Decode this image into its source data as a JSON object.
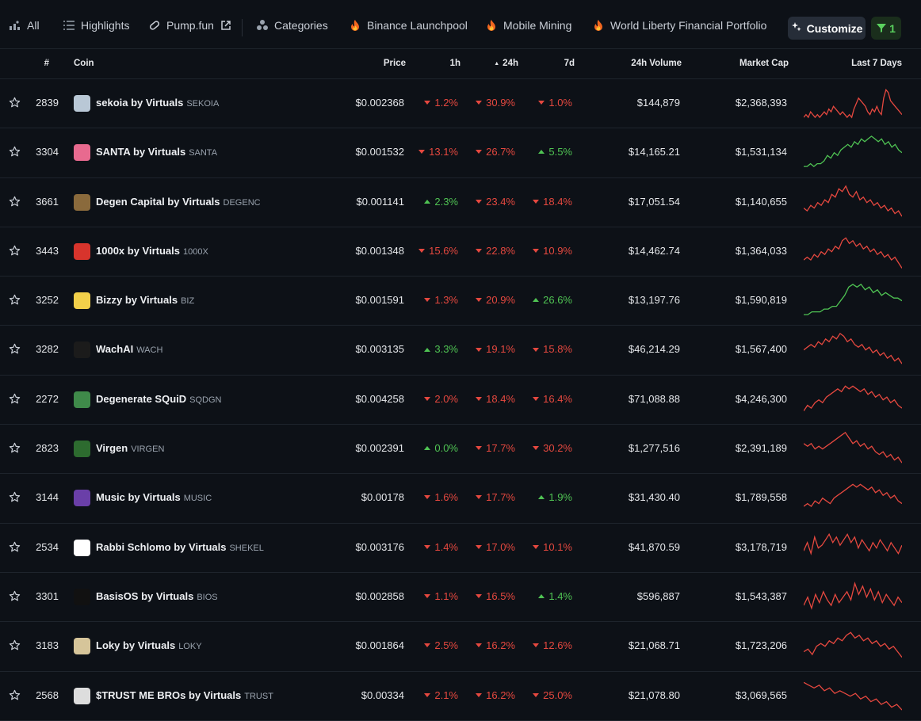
{
  "tabs": [
    {
      "label": "All",
      "icon": "chart-dots-icon"
    },
    {
      "label": "Highlights",
      "icon": "list-icon"
    },
    {
      "label": "Pump.fun",
      "icon": "pill-icon",
      "external": true
    },
    {
      "label": "Categories",
      "icon": "triangle-dots-icon"
    },
    {
      "label": "Binance Launchpool",
      "icon": "fire-icon"
    },
    {
      "label": "Mobile Mining",
      "icon": "fire-icon"
    },
    {
      "label": "World Liberty Financial Portfolio",
      "icon": "fire-icon"
    }
  ],
  "toolbar": {
    "customize_label": "Customize",
    "filter_count": "1"
  },
  "columns": {
    "rank": "#",
    "coin": "Coin",
    "price": "Price",
    "h1": "1h",
    "h24": "24h",
    "d7": "7d",
    "volume": "24h Volume",
    "market_cap": "Market Cap",
    "last7": "Last 7 Days"
  },
  "colors": {
    "up": "#4fc353",
    "down": "#e5483f",
    "background": "#0d1117"
  },
  "rows": [
    {
      "rank": "2839",
      "name": "sekoia by Virtuals",
      "symbol": "SEKOIA",
      "price": "$0.002368",
      "h1": "1.2%",
      "h1_dir": "down",
      "h24": "30.9%",
      "h24_dir": "down",
      "d7": "1.0%",
      "d7_dir": "down",
      "volume": "$144,879",
      "mcap": "$2,368,393",
      "trend": "down",
      "icon_color": "#b9c8d6"
    },
    {
      "rank": "3304",
      "name": "SANTA by Virtuals",
      "symbol": "SANTA",
      "price": "$0.001532",
      "h1": "13.1%",
      "h1_dir": "down",
      "h24": "26.7%",
      "h24_dir": "down",
      "d7": "5.5%",
      "d7_dir": "up",
      "volume": "$14,165.21",
      "mcap": "$1,531,134",
      "trend": "up",
      "icon_color": "#e86a8f"
    },
    {
      "rank": "3661",
      "name": "Degen Capital by Virtuals",
      "symbol": "DEGENC",
      "price": "$0.001141",
      "h1": "2.3%",
      "h1_dir": "up",
      "h24": "23.4%",
      "h24_dir": "down",
      "d7": "18.4%",
      "d7_dir": "down",
      "volume": "$17,051.54",
      "mcap": "$1,140,655",
      "trend": "down",
      "icon_color": "#8a6a3c"
    },
    {
      "rank": "3443",
      "name": "1000x by Virtuals",
      "symbol": "1000X",
      "price": "$0.001348",
      "h1": "15.6%",
      "h1_dir": "down",
      "h24": "22.8%",
      "h24_dir": "down",
      "d7": "10.9%",
      "d7_dir": "down",
      "volume": "$14,462.74",
      "mcap": "$1,364,033",
      "trend": "down",
      "icon_color": "#d8342c"
    },
    {
      "rank": "3252",
      "name": "Bizzy by Virtuals",
      "symbol": "BIZ",
      "price": "$0.001591",
      "h1": "1.3%",
      "h1_dir": "down",
      "h24": "20.9%",
      "h24_dir": "down",
      "d7": "26.6%",
      "d7_dir": "up",
      "volume": "$13,197.76",
      "mcap": "$1,590,819",
      "trend": "up",
      "icon_color": "#f2d04a"
    },
    {
      "rank": "3282",
      "name": "WachAI",
      "symbol": "WACH",
      "price": "$0.003135",
      "h1": "3.3%",
      "h1_dir": "up",
      "h24": "19.1%",
      "h24_dir": "down",
      "d7": "15.8%",
      "d7_dir": "down",
      "volume": "$46,214.29",
      "mcap": "$1,567,400",
      "trend": "down",
      "icon_color": "#1b1b1b"
    },
    {
      "rank": "2272",
      "name": "Degenerate SQuiD",
      "symbol": "SQDGN",
      "price": "$0.004258",
      "h1": "2.0%",
      "h1_dir": "down",
      "h24": "18.4%",
      "h24_dir": "down",
      "d7": "16.4%",
      "d7_dir": "down",
      "volume": "$71,088.88",
      "mcap": "$4,246,300",
      "trend": "down",
      "icon_color": "#3f8a4a"
    },
    {
      "rank": "2823",
      "name": "Virgen",
      "symbol": "VIRGEN",
      "price": "$0.002391",
      "h1": "0.0%",
      "h1_dir": "up",
      "h24": "17.7%",
      "h24_dir": "down",
      "d7": "30.2%",
      "d7_dir": "down",
      "volume": "$1,277,516",
      "mcap": "$2,391,189",
      "trend": "down",
      "icon_color": "#2d6b2f"
    },
    {
      "rank": "3144",
      "name": "Music by Virtuals",
      "symbol": "MUSIC",
      "price": "$0.00178",
      "h1": "1.6%",
      "h1_dir": "down",
      "h24": "17.7%",
      "h24_dir": "down",
      "d7": "1.9%",
      "d7_dir": "up",
      "volume": "$31,430.40",
      "mcap": "$1,789,558",
      "trend": "down",
      "icon_color": "#6a3fa8"
    },
    {
      "rank": "2534",
      "name": "Rabbi Schlomo by Virtuals",
      "symbol": "SHEKEL",
      "price": "$0.003176",
      "h1": "1.4%",
      "h1_dir": "down",
      "h24": "17.0%",
      "h24_dir": "down",
      "d7": "10.1%",
      "d7_dir": "down",
      "volume": "$41,870.59",
      "mcap": "$3,178,719",
      "trend": "down",
      "icon_color": "#ffffff"
    },
    {
      "rank": "3301",
      "name": "BasisOS by Virtuals",
      "symbol": "BIOS",
      "price": "$0.002858",
      "h1": "1.1%",
      "h1_dir": "down",
      "h24": "16.5%",
      "h24_dir": "down",
      "d7": "1.4%",
      "d7_dir": "up",
      "volume": "$596,887",
      "mcap": "$1,543,387",
      "trend": "down",
      "icon_color": "#111111"
    },
    {
      "rank": "3183",
      "name": "Loky by Virtuals",
      "symbol": "LOKY",
      "price": "$0.001864",
      "h1": "2.5%",
      "h1_dir": "down",
      "h24": "16.2%",
      "h24_dir": "down",
      "d7": "12.6%",
      "d7_dir": "down",
      "volume": "$21,068.71",
      "mcap": "$1,723,206",
      "trend": "down",
      "icon_color": "#d6c59a"
    },
    {
      "rank": "2568",
      "name": "$TRUST ME BROs by Virtuals",
      "symbol": "TRUST",
      "price": "$0.00334",
      "h1": "2.1%",
      "h1_dir": "down",
      "h24": "16.2%",
      "h24_dir": "down",
      "d7": "25.0%",
      "d7_dir": "down",
      "volume": "$21,078.80",
      "mcap": "$3,069,565",
      "trend": "down",
      "icon_color": "#dddddd"
    }
  ]
}
